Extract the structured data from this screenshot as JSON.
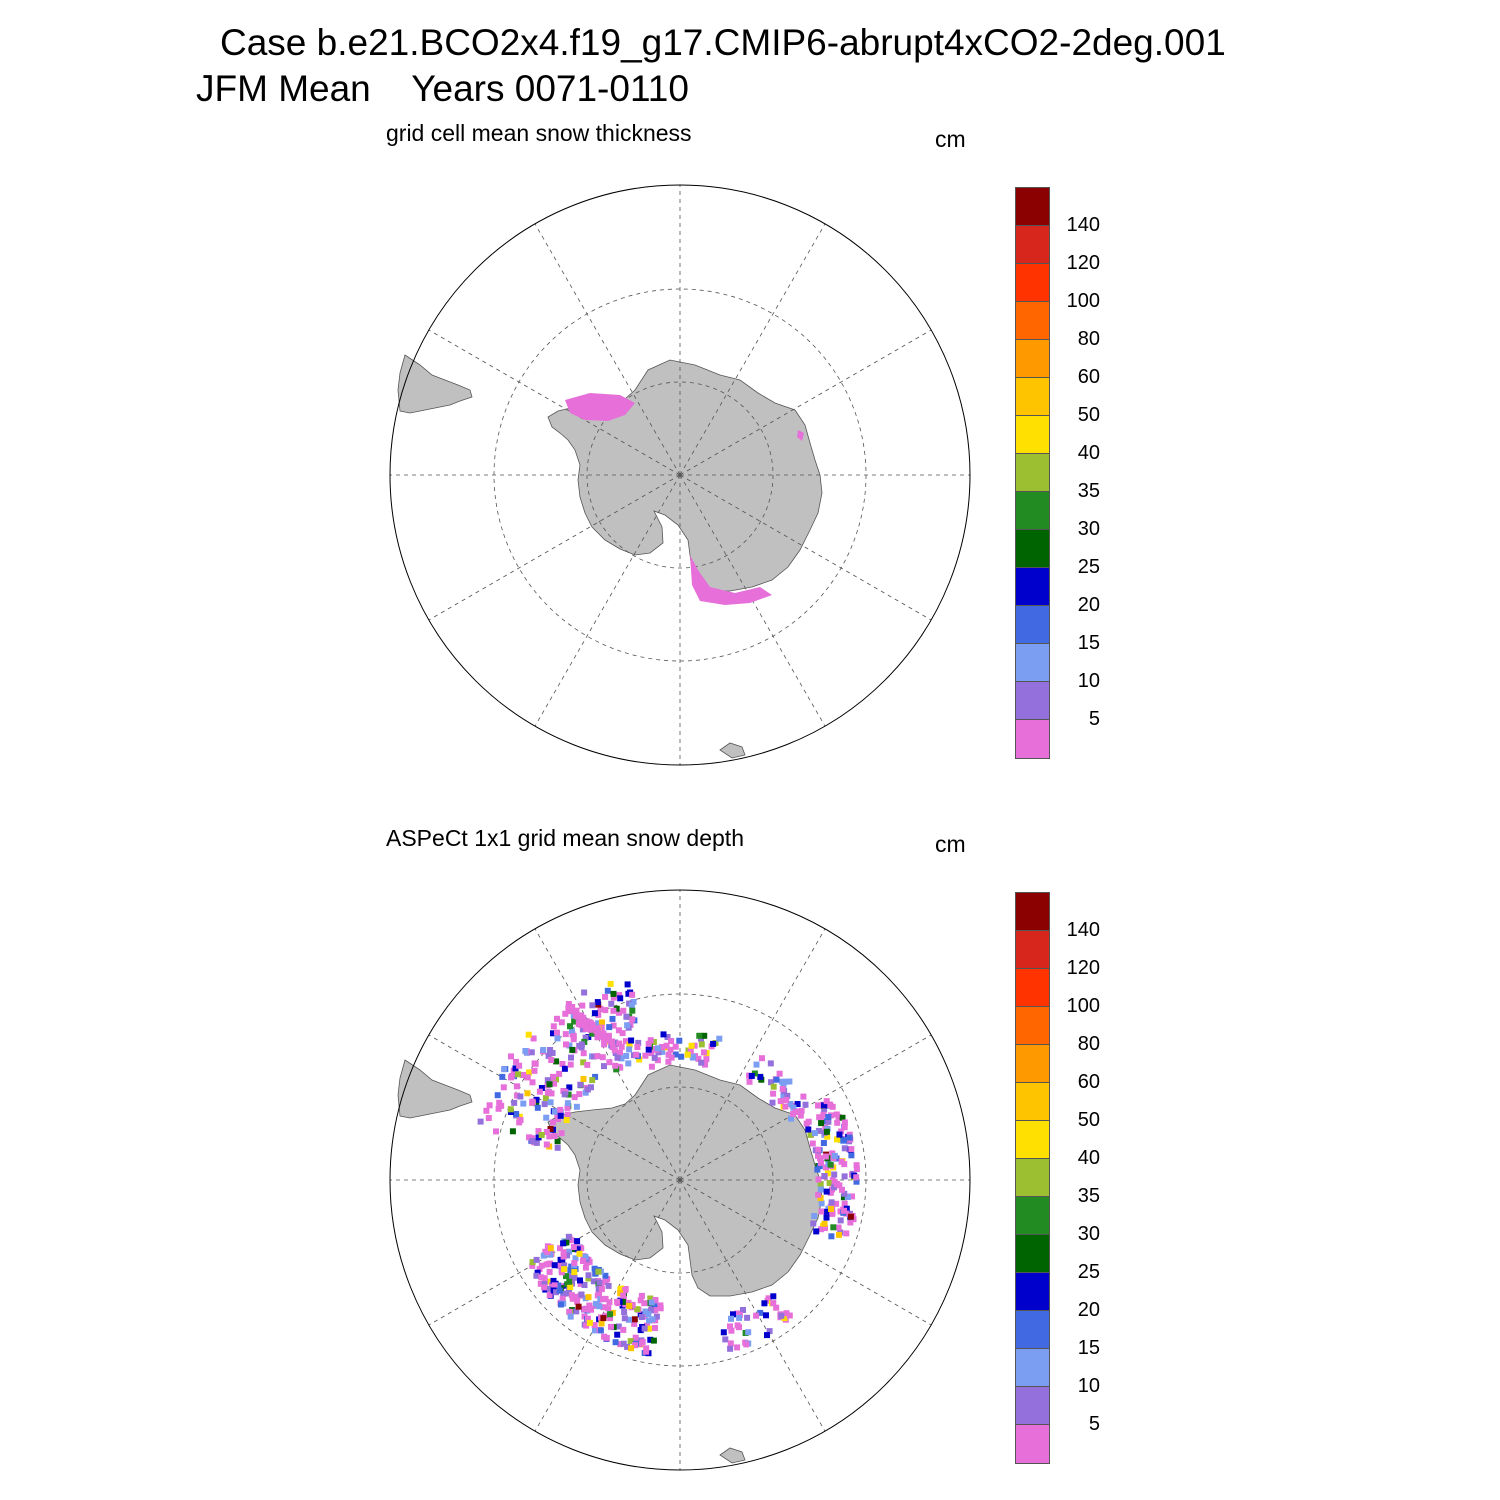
{
  "header": {
    "title_line1": "Case b.e21.BCO2x4.f19_g17.CMIP6-abrupt4xCO2-2deg.001",
    "title_line2": "JFM Mean    Years 0071-0110"
  },
  "panels": [
    {
      "subtitle": "grid cell mean snow thickness",
      "units": "cm",
      "field_color": "#e66fd9"
    },
    {
      "subtitle": "ASPeCt 1x1 grid mean snow depth",
      "units": "cm",
      "field_color": "#e66fd9"
    }
  ],
  "colorbar": {
    "labels": [
      "140",
      "120",
      "100",
      "80",
      "60",
      "50",
      "40",
      "35",
      "30",
      "25",
      "20",
      "15",
      "10",
      "5"
    ],
    "colors": [
      "#8b0000",
      "#d7261b",
      "#ff3300",
      "#ff6600",
      "#ff9900",
      "#ffc400",
      "#ffe000",
      "#9cbf32",
      "#228b22",
      "#006400",
      "#0000cd",
      "#4169e1",
      "#7b9ef2",
      "#9370db",
      "#e66fd9"
    ]
  },
  "map_style": {
    "land_color": "#c0c0c0",
    "ocean_color": "#ffffff",
    "grid_color": "#555555"
  }
}
